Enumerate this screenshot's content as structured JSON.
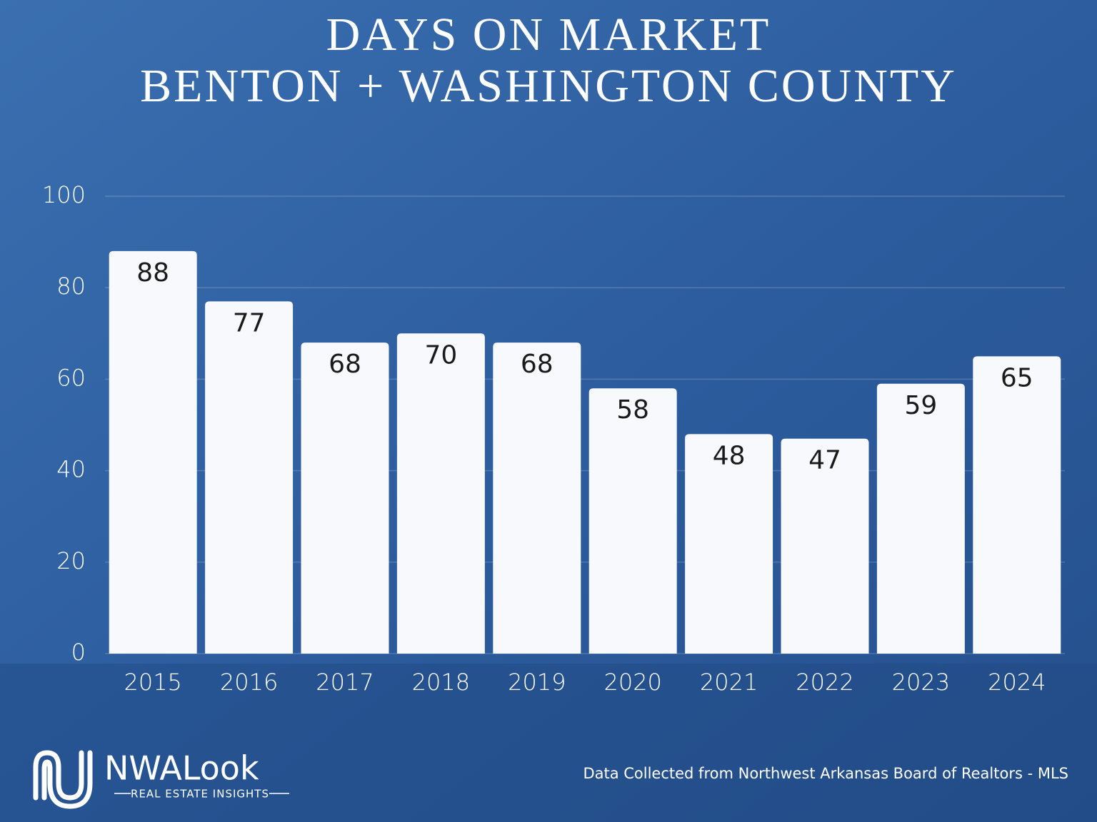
{
  "chart_data": {
    "type": "bar",
    "title": "DAYS ON MARKET",
    "subtitle": "BENTON + WASHINGTON COUNTY",
    "categories": [
      "2015",
      "2016",
      "2017",
      "2018",
      "2019",
      "2020",
      "2021",
      "2022",
      "2023",
      "2024"
    ],
    "values": [
      88,
      77,
      68,
      70,
      68,
      58,
      48,
      47,
      59,
      65
    ],
    "color": "#f8f9fc",
    "ylim": [
      0,
      100
    ],
    "yticks": [
      0,
      20,
      40,
      60,
      80,
      100
    ],
    "grid": true,
    "source": "Data Collected from Northwest Arkansas Board of Realtors - MLS"
  },
  "brand": {
    "name": "NWALook",
    "tagline": "REAL ESTATE INSIGHTS"
  }
}
